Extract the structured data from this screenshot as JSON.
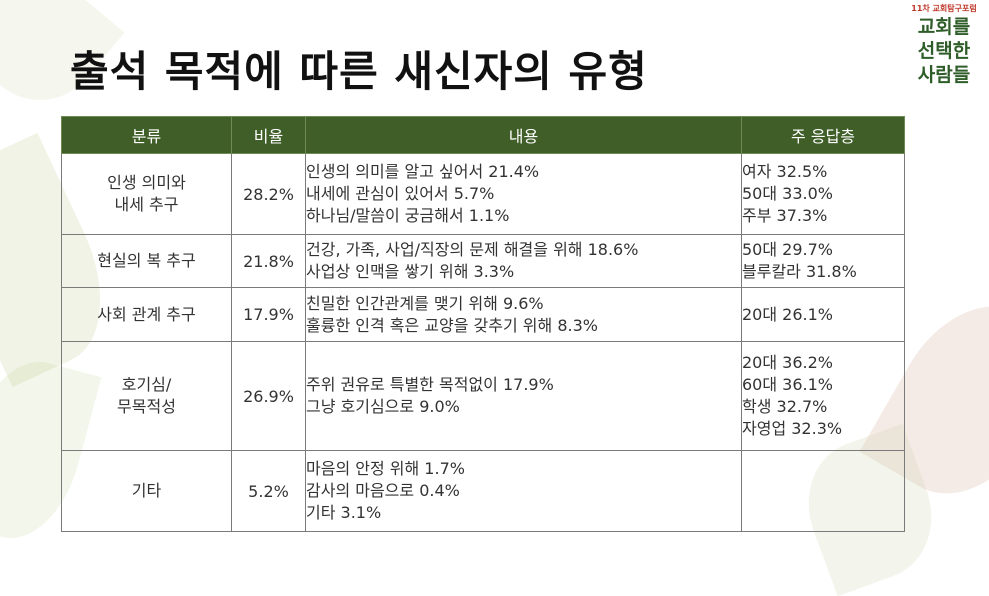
{
  "title": "출석 목적에 따른 새신자의 유형",
  "logo": {
    "small": "11차 교회탐구포럼",
    "lines": [
      "교회를",
      "선택한",
      "사람들"
    ]
  },
  "table": {
    "headers": [
      "분류",
      "비율",
      "내용",
      "주 응답층"
    ],
    "rows": [
      {
        "category": [
          "인생 의미와",
          "내세 추구"
        ],
        "ratio": "28.2%",
        "contents": [
          "인생의 의미를 알고 싶어서 21.4%",
          "내세에 관심이 있어서 5.7%",
          "하나님/말씀이 궁금해서 1.1%"
        ],
        "respondents": [
          "여자 32.5%",
          "50대 33.0%",
          "주부 37.3%"
        ]
      },
      {
        "category": [
          "현실의 복 추구"
        ],
        "ratio": "21.8%",
        "contents": [
          "건강, 가족, 사업/직장의 문제 해결을 위해 18.6%",
          "사업상 인맥을 쌓기 위해 3.3%"
        ],
        "respondents": [
          "50대 29.7%",
          "블루칼라 31.8%"
        ]
      },
      {
        "category": [
          "사회 관계 추구"
        ],
        "ratio": "17.9%",
        "contents": [
          "친밀한 인간관계를 맺기 위해 9.6%",
          "훌륭한 인격 혹은 교양을 갖추기 위해 8.3%"
        ],
        "respondents": [
          "20대 26.1%"
        ]
      },
      {
        "category": [
          "호기심/",
          "무목적성"
        ],
        "ratio": "26.9%",
        "contents": [
          "주위 권유로 특별한 목적없이 17.9%",
          "그냥 호기심으로 9.0%"
        ],
        "respondents": [
          "20대 36.2%",
          "60대 36.1%",
          "학생 32.7%",
          "자영업 32.3%"
        ]
      },
      {
        "category": [
          "기타"
        ],
        "ratio": "5.2%",
        "contents": [
          "마음의 안정 위해 1.7%",
          "감사의 마음으로 0.4%",
          "기타 3.1%"
        ],
        "respondents": []
      }
    ]
  },
  "colors": {
    "header_bg": "#3f5e28",
    "logo_green": "#2f5d2a",
    "logo_red": "#c0392b"
  }
}
